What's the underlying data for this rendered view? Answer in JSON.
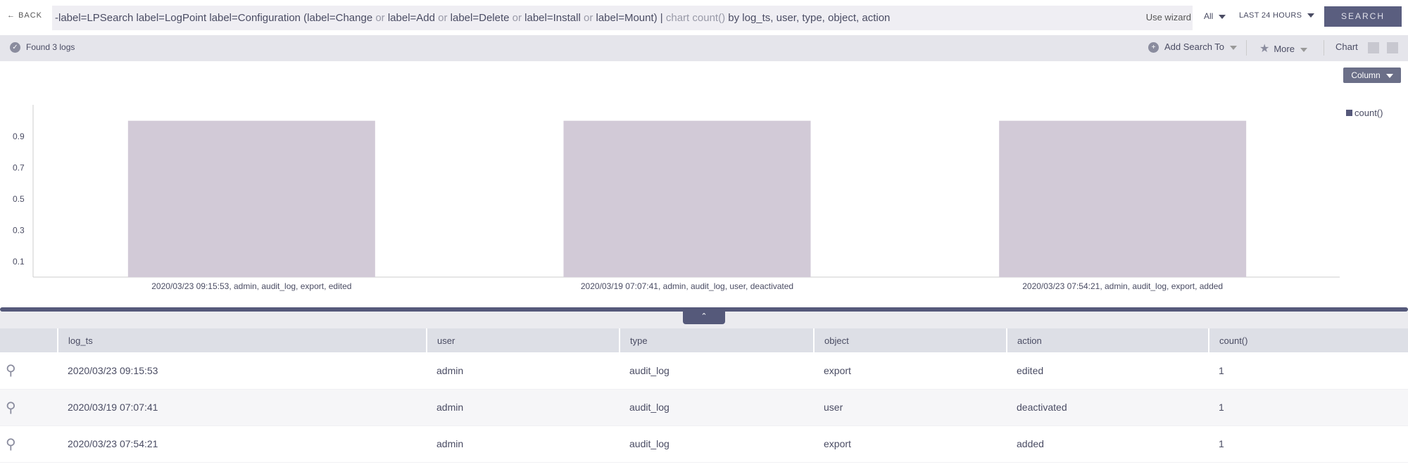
{
  "topbar": {
    "back_label": "BACK",
    "query_parts": [
      {
        "t": "-label=LPSearch label=LogPoint label=Configuration (label=Change ",
        "k": false
      },
      {
        "t": "or",
        "k": true
      },
      {
        "t": " label=Add ",
        "k": false
      },
      {
        "t": "or",
        "k": true
      },
      {
        "t": " label=Delete ",
        "k": false
      },
      {
        "t": "or",
        "k": true
      },
      {
        "t": " label=Install ",
        "k": false
      },
      {
        "t": "or",
        "k": true
      },
      {
        "t": " label=Mount) | ",
        "k": false
      },
      {
        "t": "chart count()",
        "k": true
      },
      {
        "t": " by ",
        "k": false
      },
      {
        "t": "log_ts, user, type, object, action",
        "k": false
      }
    ],
    "use_wizard": "Use wizard",
    "repo_select": "All",
    "time_select": "LAST 24 HOURS",
    "search_label": "SEARCH"
  },
  "toolbar": {
    "found": "Found 3 logs",
    "add_search_to": "Add Search To",
    "more": "More",
    "chart": "Chart",
    "chart_type": "Column"
  },
  "chart_data": {
    "type": "bar",
    "categories": [
      "2020/03/23 09:15:53, admin, audit_log, export, edited",
      "2020/03/19 07:07:41, admin, audit_log, user, deactivated",
      "2020/03/23 07:54:21, admin, audit_log, export, added"
    ],
    "series": [
      {
        "name": "count()",
        "values": [
          1,
          1,
          1
        ]
      }
    ],
    "yticks": [
      "0.1",
      "0.3",
      "0.5",
      "0.7",
      "0.9"
    ],
    "ylim": [
      0,
      1
    ],
    "legend": "top-right",
    "color": "#d2cad7"
  },
  "table": {
    "columns": [
      "log_ts",
      "user",
      "type",
      "object",
      "action",
      "count()"
    ],
    "rows": [
      [
        "2020/03/23 09:15:53",
        "admin",
        "audit_log",
        "export",
        "edited",
        "1"
      ],
      [
        "2020/03/19 07:07:41",
        "admin",
        "audit_log",
        "user",
        "deactivated",
        "1"
      ],
      [
        "2020/03/23 07:54:21",
        "admin",
        "audit_log",
        "export",
        "added",
        "1"
      ]
    ]
  }
}
